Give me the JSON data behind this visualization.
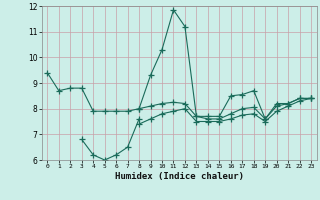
{
  "xlabel": "Humidex (Indice chaleur)",
  "xlim": [
    -0.5,
    23.5
  ],
  "ylim": [
    6,
    12
  ],
  "xticks": [
    0,
    1,
    2,
    3,
    4,
    5,
    6,
    7,
    8,
    9,
    10,
    11,
    12,
    13,
    14,
    15,
    16,
    17,
    18,
    19,
    20,
    21,
    22,
    23
  ],
  "yticks": [
    6,
    7,
    8,
    9,
    10,
    11,
    12
  ],
  "bg_color": "#cceee8",
  "grid_color": "#c8a0a8",
  "line_color": "#1a6b5a",
  "series": [
    {
      "x": [
        0,
        1,
        2,
        3,
        4,
        5,
        6,
        7,
        8,
        9,
        10,
        11,
        12,
        13,
        14,
        15,
        16,
        17,
        18,
        19,
        20,
        21,
        22,
        23
      ],
      "y": [
        9.4,
        8.7,
        8.8,
        8.8,
        7.9,
        7.9,
        7.9,
        7.9,
        8.0,
        9.3,
        10.3,
        11.85,
        11.2,
        7.7,
        7.7,
        7.7,
        8.5,
        8.55,
        8.7,
        7.6,
        8.2,
        8.2,
        8.4,
        8.4
      ]
    },
    {
      "x": [
        3,
        4,
        5,
        6,
        7,
        8
      ],
      "y": [
        6.8,
        6.2,
        6.0,
        6.2,
        6.5,
        7.6
      ]
    },
    {
      "x": [
        8,
        9,
        10,
        11,
        12,
        13,
        14,
        15,
        16,
        17,
        18,
        19,
        20,
        21,
        22,
        23
      ],
      "y": [
        8.0,
        8.1,
        8.2,
        8.25,
        8.2,
        7.7,
        7.6,
        7.6,
        7.8,
        8.0,
        8.05,
        7.6,
        8.1,
        8.2,
        8.4,
        8.4
      ]
    },
    {
      "x": [
        8,
        9,
        10,
        11,
        12,
        13,
        14,
        15,
        16,
        17,
        18,
        19,
        20,
        21,
        22,
        23
      ],
      "y": [
        7.4,
        7.6,
        7.8,
        7.9,
        8.0,
        7.5,
        7.5,
        7.5,
        7.6,
        7.75,
        7.8,
        7.5,
        7.9,
        8.1,
        8.3,
        8.4
      ]
    }
  ]
}
